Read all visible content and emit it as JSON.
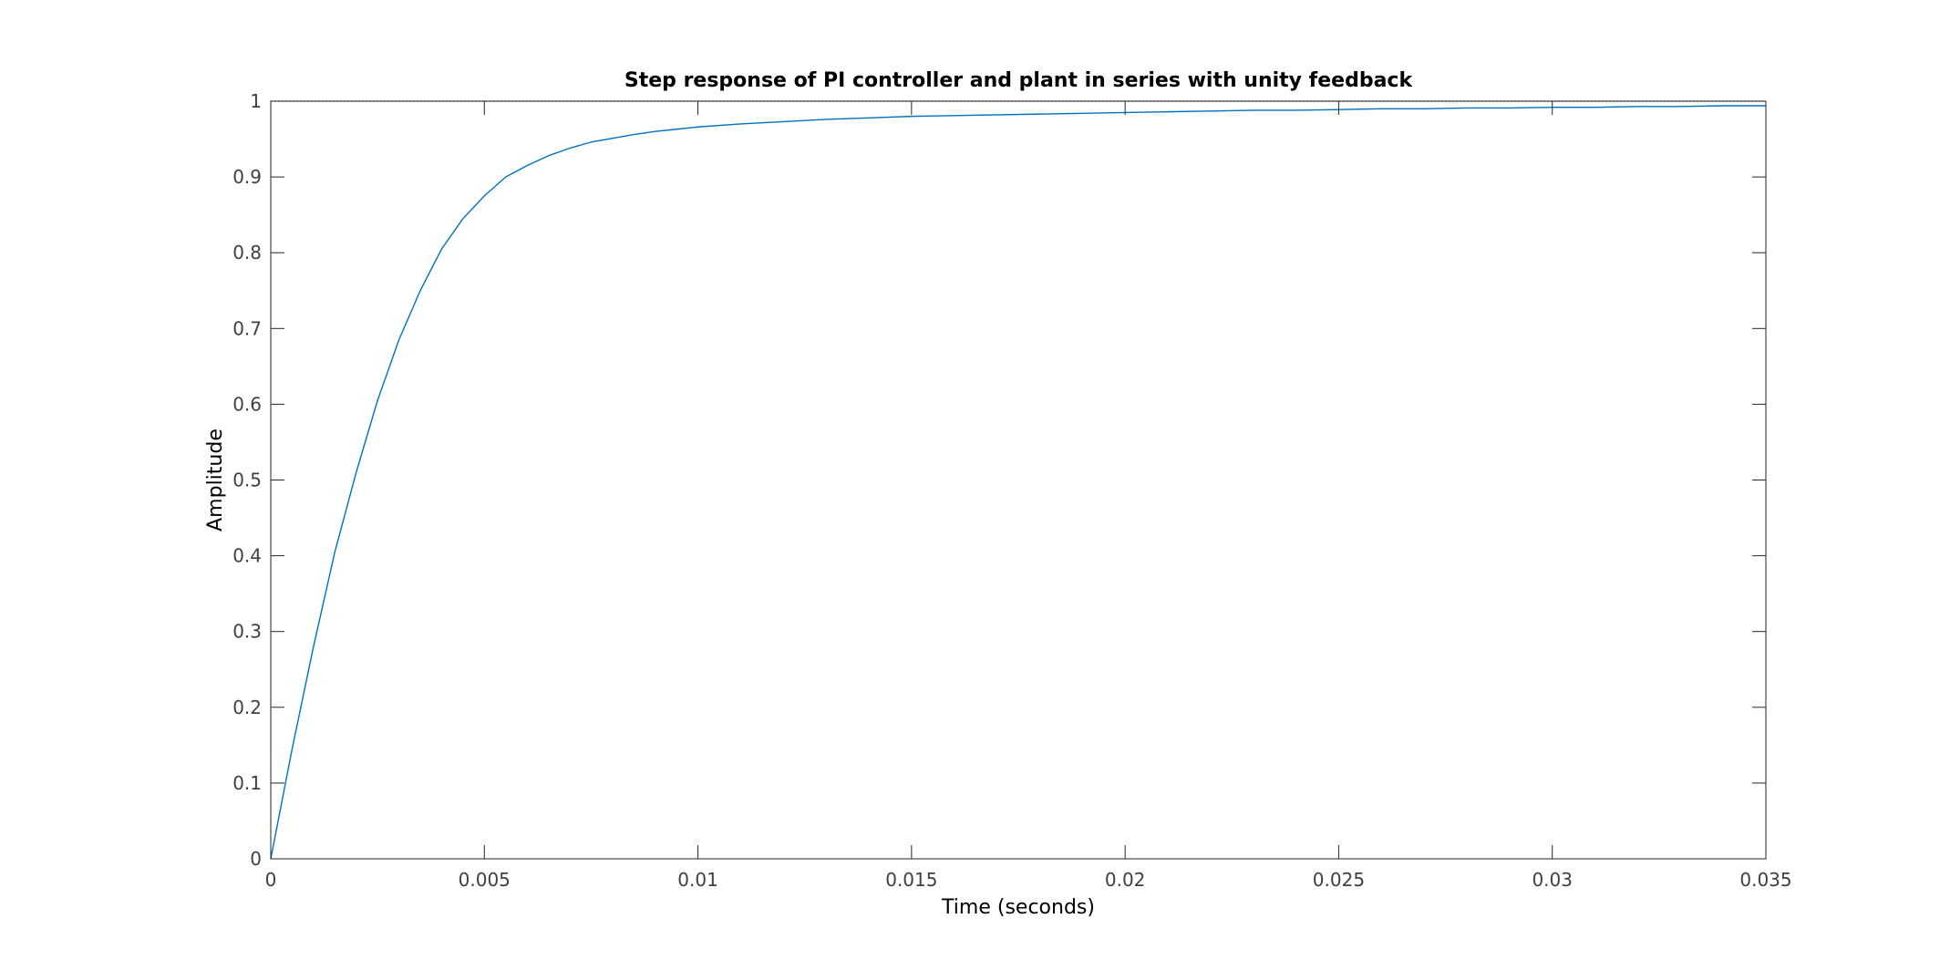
{
  "chart_data": {
    "type": "line",
    "title": "Step response of PI controller and plant in series with unity feedback",
    "xlabel": "Time (seconds)",
    "ylabel": "Amplitude",
    "xlim": [
      0,
      0.035
    ],
    "ylim": [
      0,
      1
    ],
    "x_ticks": [
      {
        "value": 0,
        "label": "0"
      },
      {
        "value": 0.005,
        "label": "0.005"
      },
      {
        "value": 0.01,
        "label": "0.01"
      },
      {
        "value": 0.015,
        "label": "0.015"
      },
      {
        "value": 0.02,
        "label": "0.02"
      },
      {
        "value": 0.025,
        "label": "0.025"
      },
      {
        "value": 0.03,
        "label": "0.03"
      },
      {
        "value": 0.035,
        "label": "0.035"
      }
    ],
    "y_ticks": [
      {
        "value": 0,
        "label": "0"
      },
      {
        "value": 0.1,
        "label": "0.1"
      },
      {
        "value": 0.2,
        "label": "0.2"
      },
      {
        "value": 0.3,
        "label": "0.3"
      },
      {
        "value": 0.4,
        "label": "0.4"
      },
      {
        "value": 0.5,
        "label": "0.5"
      },
      {
        "value": 0.6,
        "label": "0.6"
      },
      {
        "value": 0.7,
        "label": "0.7"
      },
      {
        "value": 0.8,
        "label": "0.8"
      },
      {
        "value": 0.9,
        "label": "0.9"
      },
      {
        "value": 1,
        "label": "1"
      }
    ],
    "grid": false,
    "reference_line": {
      "y": 1,
      "style": "dotted",
      "color": "#000000"
    },
    "series": [
      {
        "color": "#0072BD",
        "x": [
          0,
          0.0005,
          0.001,
          0.0015,
          0.002,
          0.0025,
          0.003,
          0.0035,
          0.004,
          0.0045,
          0.005,
          0.0055,
          0.006,
          0.0065,
          0.007,
          0.0075,
          0.008,
          0.0085,
          0.009,
          0.0095,
          0.01,
          0.011,
          0.012,
          0.013,
          0.014,
          0.015,
          0.016,
          0.017,
          0.018,
          0.019,
          0.02,
          0.021,
          0.022,
          0.023,
          0.024,
          0.025,
          0.026,
          0.027,
          0.028,
          0.029,
          0.03,
          0.031,
          0.032,
          0.033,
          0.034,
          0.035
        ],
        "y": [
          0,
          0.145,
          0.28,
          0.405,
          0.51,
          0.605,
          0.685,
          0.75,
          0.805,
          0.845,
          0.875,
          0.9,
          0.915,
          0.928,
          0.938,
          0.946,
          0.951,
          0.956,
          0.96,
          0.963,
          0.966,
          0.97,
          0.973,
          0.976,
          0.978,
          0.98,
          0.981,
          0.982,
          0.983,
          0.984,
          0.985,
          0.986,
          0.987,
          0.988,
          0.988,
          0.989,
          0.99,
          0.99,
          0.991,
          0.991,
          0.992,
          0.992,
          0.993,
          0.993,
          0.994,
          0.994
        ]
      }
    ]
  }
}
